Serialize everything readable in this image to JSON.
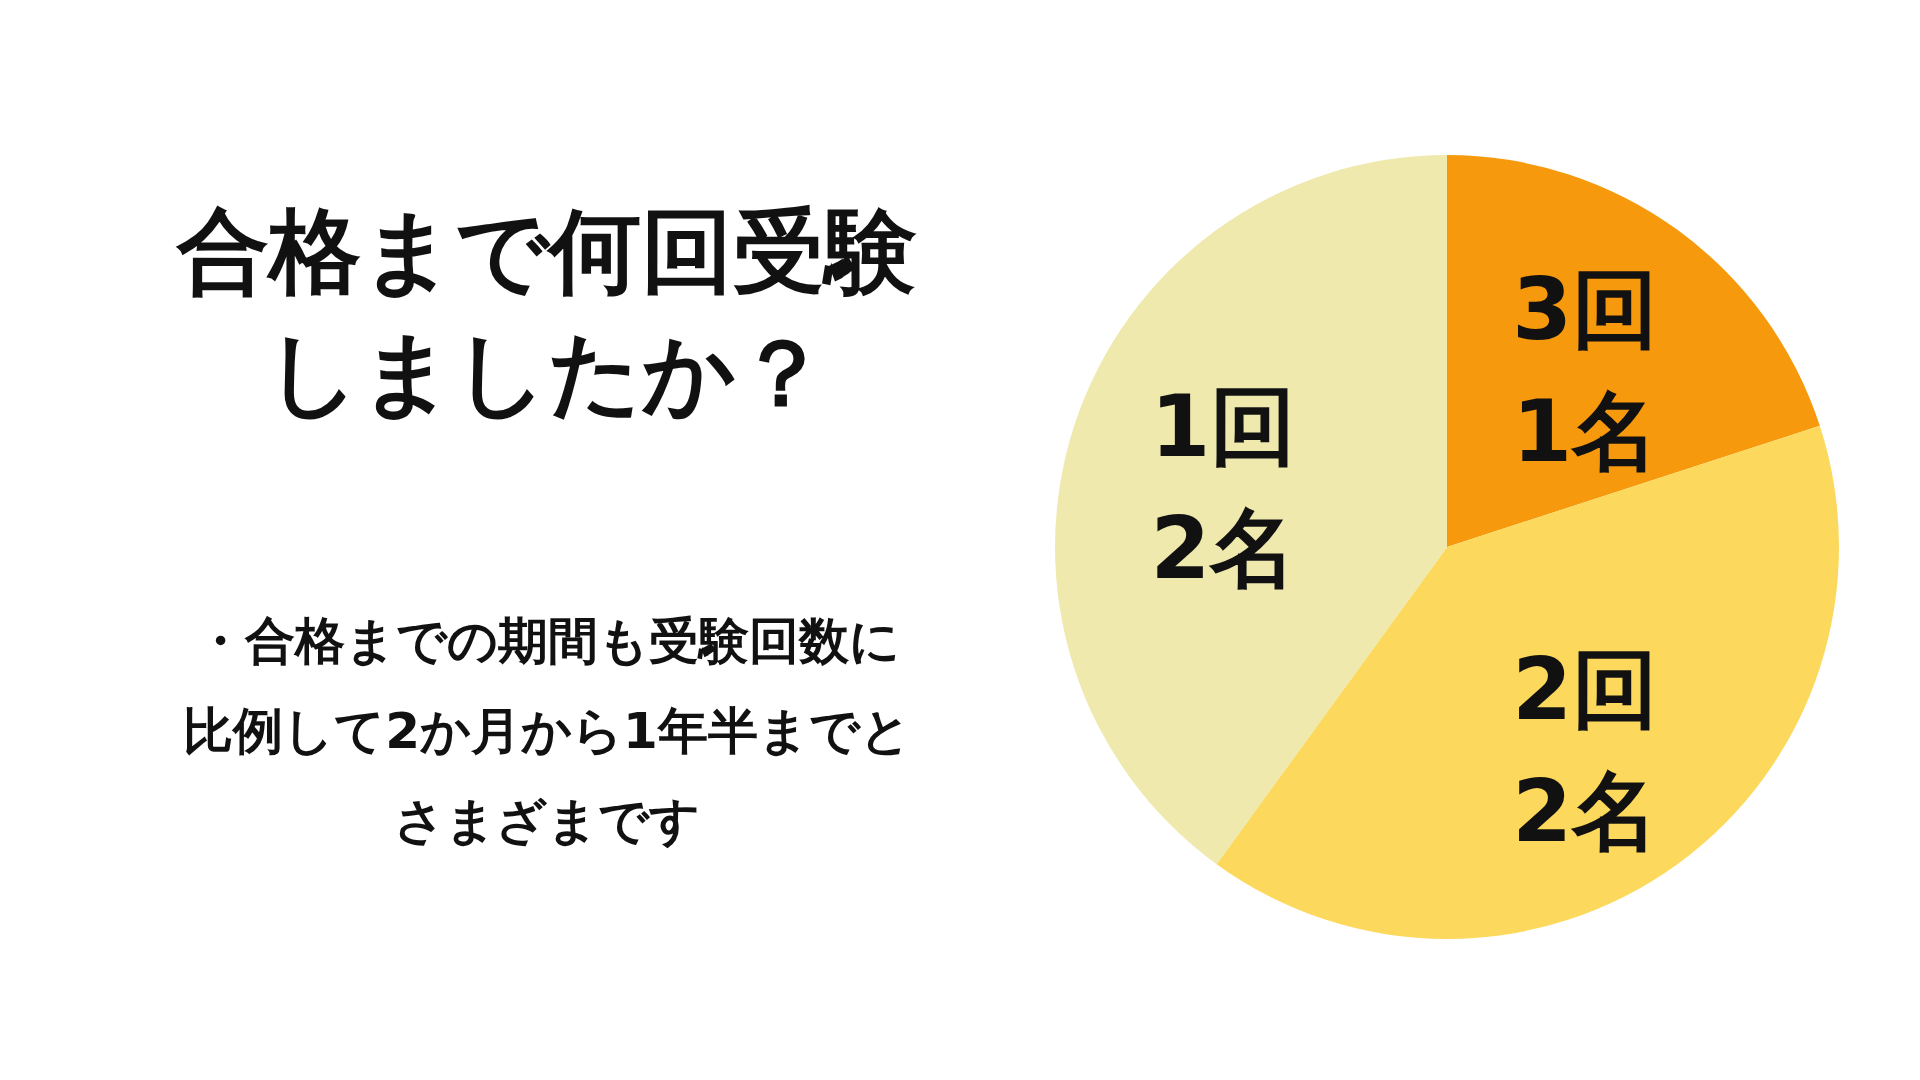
{
  "chart_data": {
    "type": "pie",
    "title": "合格まで何回受験しましたか？",
    "categories": [
      "3回",
      "2回",
      "1回"
    ],
    "values": [
      1,
      2,
      2
    ],
    "colors": [
      "#f7990c",
      "#fcd95c",
      "#efe9ae"
    ],
    "value_labels": [
      "1名",
      "2名",
      "2名"
    ],
    "annotations": [
      "・合格までの期間も受験回数に比例して2か月から1年半までとさまざまです"
    ]
  }
}
